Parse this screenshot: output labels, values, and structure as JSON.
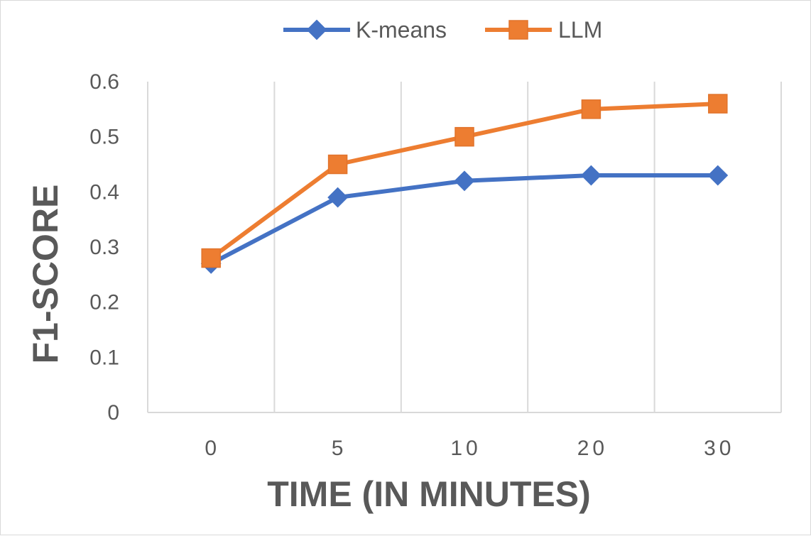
{
  "chart_data": {
    "type": "line",
    "categories": [
      "0",
      "5",
      "10",
      "20",
      "30"
    ],
    "series": [
      {
        "name": "K-means",
        "values": [
          0.27,
          0.39,
          0.42,
          0.43,
          0.43
        ],
        "color": "#4472C4",
        "marker": "diamond"
      },
      {
        "name": "LLM",
        "values": [
          0.28,
          0.45,
          0.5,
          0.55,
          0.56
        ],
        "color": "#ED7D31",
        "marker": "square"
      }
    ],
    "title": "",
    "xlabel": "TIME (IN MINUTES)",
    "ylabel": "F1-SCORE",
    "ylim": [
      0,
      0.6
    ],
    "yticks": [
      "0",
      "0.1",
      "0.2",
      "0.3",
      "0.4",
      "0.5",
      "0.6"
    ],
    "grid": "vertical",
    "legend_position": "top"
  }
}
